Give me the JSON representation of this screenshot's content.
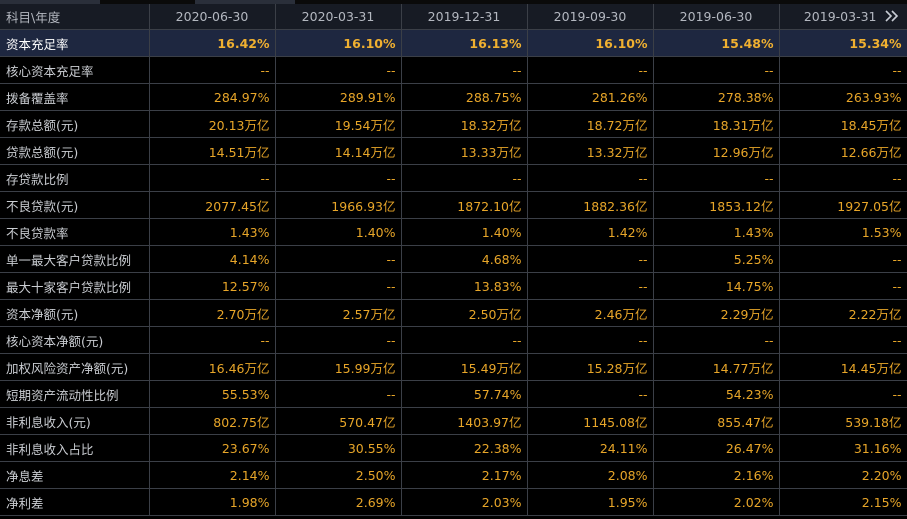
{
  "header": {
    "corner_label": "科目\\年度",
    "periods": [
      "2020-06-30",
      "2020-03-31",
      "2019-12-31",
      "2019-09-30",
      "2019-06-30",
      "2019-03-31"
    ],
    "more_icon": "double-chevron-right-icon"
  },
  "colors": {
    "value": "#e8a629",
    "label": "#c9ccd1",
    "header_bg": "#171b24",
    "highlight_bg": "#1e2740",
    "grid": "#3b3f47"
  },
  "rows": [
    {
      "label": "资本充足率",
      "values": [
        "16.42%",
        "16.10%",
        "16.13%",
        "16.10%",
        "15.48%",
        "15.34%"
      ],
      "highlight": true
    },
    {
      "label": "核心资本充足率",
      "values": [
        "--",
        "--",
        "--",
        "--",
        "--",
        "--"
      ]
    },
    {
      "label": "拨备覆盖率",
      "values": [
        "284.97%",
        "289.91%",
        "288.75%",
        "281.26%",
        "278.38%",
        "263.93%"
      ]
    },
    {
      "label": "存款总额(元)",
      "values": [
        "20.13万亿",
        "19.54万亿",
        "18.32万亿",
        "18.72万亿",
        "18.31万亿",
        "18.45万亿"
      ]
    },
    {
      "label": "贷款总额(元)",
      "values": [
        "14.51万亿",
        "14.14万亿",
        "13.33万亿",
        "13.32万亿",
        "12.96万亿",
        "12.66万亿"
      ]
    },
    {
      "label": "存贷款比例",
      "values": [
        "--",
        "--",
        "--",
        "--",
        "--",
        "--"
      ]
    },
    {
      "label": "不良贷款(元)",
      "values": [
        "2077.45亿",
        "1966.93亿",
        "1872.10亿",
        "1882.36亿",
        "1853.12亿",
        "1927.05亿"
      ]
    },
    {
      "label": "不良贷款率",
      "values": [
        "1.43%",
        "1.40%",
        "1.40%",
        "1.42%",
        "1.43%",
        "1.53%"
      ]
    },
    {
      "label": "单一最大客户贷款比例",
      "values": [
        "4.14%",
        "--",
        "4.68%",
        "--",
        "5.25%",
        "--"
      ]
    },
    {
      "label": "最大十家客户贷款比例",
      "values": [
        "12.57%",
        "--",
        "13.83%",
        "--",
        "14.75%",
        "--"
      ]
    },
    {
      "label": "资本净额(元)",
      "values": [
        "2.70万亿",
        "2.57万亿",
        "2.50万亿",
        "2.46万亿",
        "2.29万亿",
        "2.22万亿"
      ]
    },
    {
      "label": "核心资本净额(元)",
      "values": [
        "--",
        "--",
        "--",
        "--",
        "--",
        "--"
      ]
    },
    {
      "label": "加权风险资产净额(元)",
      "values": [
        "16.46万亿",
        "15.99万亿",
        "15.49万亿",
        "15.28万亿",
        "14.77万亿",
        "14.45万亿"
      ]
    },
    {
      "label": "短期资产流动性比例",
      "values": [
        "55.53%",
        "--",
        "57.74%",
        "--",
        "54.23%",
        "--"
      ]
    },
    {
      "label": "非利息收入(元)",
      "values": [
        "802.75亿",
        "570.47亿",
        "1403.97亿",
        "1145.08亿",
        "855.47亿",
        "539.18亿"
      ]
    },
    {
      "label": "非利息收入占比",
      "values": [
        "23.67%",
        "30.55%",
        "22.38%",
        "24.11%",
        "26.47%",
        "31.16%"
      ]
    },
    {
      "label": "净息差",
      "values": [
        "2.14%",
        "2.50%",
        "2.17%",
        "2.08%",
        "2.16%",
        "2.20%"
      ]
    },
    {
      "label": "净利差",
      "values": [
        "1.98%",
        "2.69%",
        "2.03%",
        "1.95%",
        "2.02%",
        "2.15%"
      ]
    }
  ]
}
